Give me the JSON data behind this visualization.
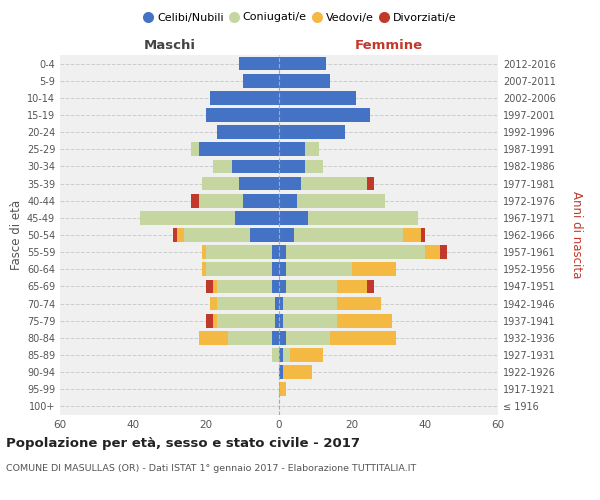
{
  "age_groups": [
    "100+",
    "95-99",
    "90-94",
    "85-89",
    "80-84",
    "75-79",
    "70-74",
    "65-69",
    "60-64",
    "55-59",
    "50-54",
    "45-49",
    "40-44",
    "35-39",
    "30-34",
    "25-29",
    "20-24",
    "15-19",
    "10-14",
    "5-9",
    "0-4"
  ],
  "birth_years": [
    "≤ 1916",
    "1917-1921",
    "1922-1926",
    "1927-1931",
    "1932-1936",
    "1937-1941",
    "1942-1946",
    "1947-1951",
    "1952-1956",
    "1957-1961",
    "1962-1966",
    "1967-1971",
    "1972-1976",
    "1977-1981",
    "1982-1986",
    "1987-1991",
    "1992-1996",
    "1997-2001",
    "2002-2006",
    "2007-2011",
    "2012-2016"
  ],
  "maschi": {
    "celibi": [
      0,
      0,
      0,
      0,
      2,
      1,
      1,
      2,
      2,
      2,
      8,
      12,
      10,
      11,
      13,
      22,
      17,
      20,
      19,
      10,
      11
    ],
    "coniugati": [
      0,
      0,
      0,
      2,
      12,
      16,
      16,
      15,
      18,
      18,
      18,
      26,
      12,
      10,
      5,
      2,
      0,
      0,
      0,
      0,
      0
    ],
    "vedovi": [
      0,
      0,
      0,
      0,
      8,
      1,
      2,
      1,
      1,
      1,
      2,
      0,
      0,
      0,
      0,
      0,
      0,
      0,
      0,
      0,
      0
    ],
    "divorziati": [
      0,
      0,
      0,
      0,
      0,
      2,
      0,
      2,
      0,
      0,
      1,
      0,
      2,
      0,
      0,
      0,
      0,
      0,
      0,
      0,
      0
    ]
  },
  "femmine": {
    "nubili": [
      0,
      0,
      1,
      1,
      2,
      1,
      1,
      2,
      2,
      2,
      4,
      8,
      5,
      6,
      7,
      7,
      18,
      25,
      21,
      14,
      13
    ],
    "coniugate": [
      0,
      0,
      0,
      2,
      12,
      15,
      15,
      14,
      18,
      38,
      30,
      30,
      24,
      18,
      5,
      4,
      0,
      0,
      0,
      0,
      0
    ],
    "vedove": [
      0,
      2,
      8,
      9,
      18,
      15,
      12,
      8,
      12,
      4,
      5,
      0,
      0,
      0,
      0,
      0,
      0,
      0,
      0,
      0,
      0
    ],
    "divorziate": [
      0,
      0,
      0,
      0,
      0,
      0,
      0,
      2,
      0,
      2,
      1,
      0,
      0,
      2,
      0,
      0,
      0,
      0,
      0,
      0,
      0
    ]
  },
  "colors": {
    "celibi_nubili": "#4472C4",
    "coniugati": "#C5D6A0",
    "vedovi": "#F4B942",
    "divorziati": "#C0392B"
  },
  "xlim": 60,
  "title": "Popolazione per età, sesso e stato civile - 2017",
  "subtitle": "COMUNE DI MASULLAS (OR) - Dati ISTAT 1° gennaio 2017 - Elaborazione TUTTITALIA.IT",
  "ylabel_left": "Fasce di età",
  "ylabel_right": "Anni di nascita",
  "xlabel_left": "Maschi",
  "xlabel_right": "Femmine",
  "legend_labels": [
    "Celibi/Nubili",
    "Coniugati/e",
    "Vedovi/e",
    "Divorziati/e"
  ],
  "background_color": "#f0f0f0"
}
